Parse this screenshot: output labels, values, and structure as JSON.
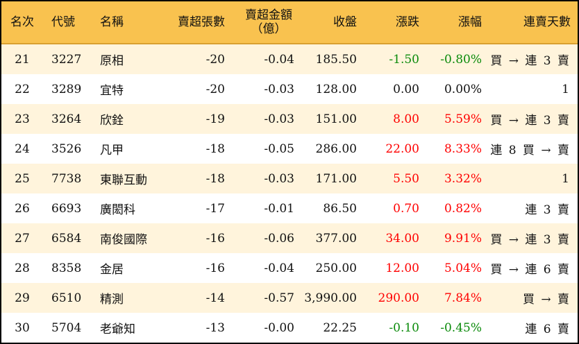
{
  "headers": [
    "名次",
    "代號",
    "名稱",
    "賣超張數",
    "賣超金額",
    "（億）",
    "收盤",
    "漲跌",
    "漲幅",
    "連賣天數"
  ],
  "colors": {
    "header_bg": "#F9C24F",
    "alt_row_bg": "#FFF4DC",
    "up": "#FF0000",
    "down": "#0A8A0A"
  },
  "rows": [
    {
      "rank": "21",
      "code": "3227",
      "name": "原相",
      "shares": "-20",
      "amount": "-0.04",
      "close": "185.50",
      "change": "-1.50",
      "pct": "-0.80%",
      "dir": "dn",
      "days": "買 → 連 3 賣"
    },
    {
      "rank": "22",
      "code": "3289",
      "name": "宜特",
      "shares": "-20",
      "amount": "-0.03",
      "close": "128.00",
      "change": "0.00",
      "pct": "0.00%",
      "dir": "flat",
      "days": "1"
    },
    {
      "rank": "23",
      "code": "3264",
      "name": "欣銓",
      "shares": "-19",
      "amount": "-0.03",
      "close": "151.00",
      "change": "8.00",
      "pct": "5.59%",
      "dir": "up",
      "days": "買 → 連 3 賣"
    },
    {
      "rank": "24",
      "code": "3526",
      "name": "凡甲",
      "shares": "-18",
      "amount": "-0.05",
      "close": "286.00",
      "change": "22.00",
      "pct": "8.33%",
      "dir": "up",
      "days": "連 8 買 → 賣"
    },
    {
      "rank": "25",
      "code": "7738",
      "name": "東聯互動",
      "shares": "-18",
      "amount": "-0.03",
      "close": "171.00",
      "change": "5.50",
      "pct": "3.32%",
      "dir": "up",
      "days": "1"
    },
    {
      "rank": "26",
      "code": "6693",
      "name": "廣閎科",
      "shares": "-17",
      "amount": "-0.01",
      "close": "86.50",
      "change": "0.70",
      "pct": "0.82%",
      "dir": "up",
      "days": "連 3 賣"
    },
    {
      "rank": "27",
      "code": "6584",
      "name": "南俊國際",
      "shares": "-16",
      "amount": "-0.06",
      "close": "377.00",
      "change": "34.00",
      "pct": "9.91%",
      "dir": "up",
      "days": "買 → 連 3 賣"
    },
    {
      "rank": "28",
      "code": "8358",
      "name": "金居",
      "shares": "-16",
      "amount": "-0.04",
      "close": "250.00",
      "change": "12.00",
      "pct": "5.04%",
      "dir": "up",
      "days": "買 → 連 6 賣"
    },
    {
      "rank": "29",
      "code": "6510",
      "name": "精測",
      "shares": "-14",
      "amount": "-0.57",
      "close": "3,990.00",
      "change": "290.00",
      "pct": "7.84%",
      "dir": "up",
      "days": "買 → 賣"
    },
    {
      "rank": "30",
      "code": "5704",
      "name": "老爺知",
      "shares": "-13",
      "amount": "-0.00",
      "close": "22.25",
      "change": "-0.10",
      "pct": "-0.45%",
      "dir": "dn",
      "days": "連 6 賣"
    }
  ]
}
